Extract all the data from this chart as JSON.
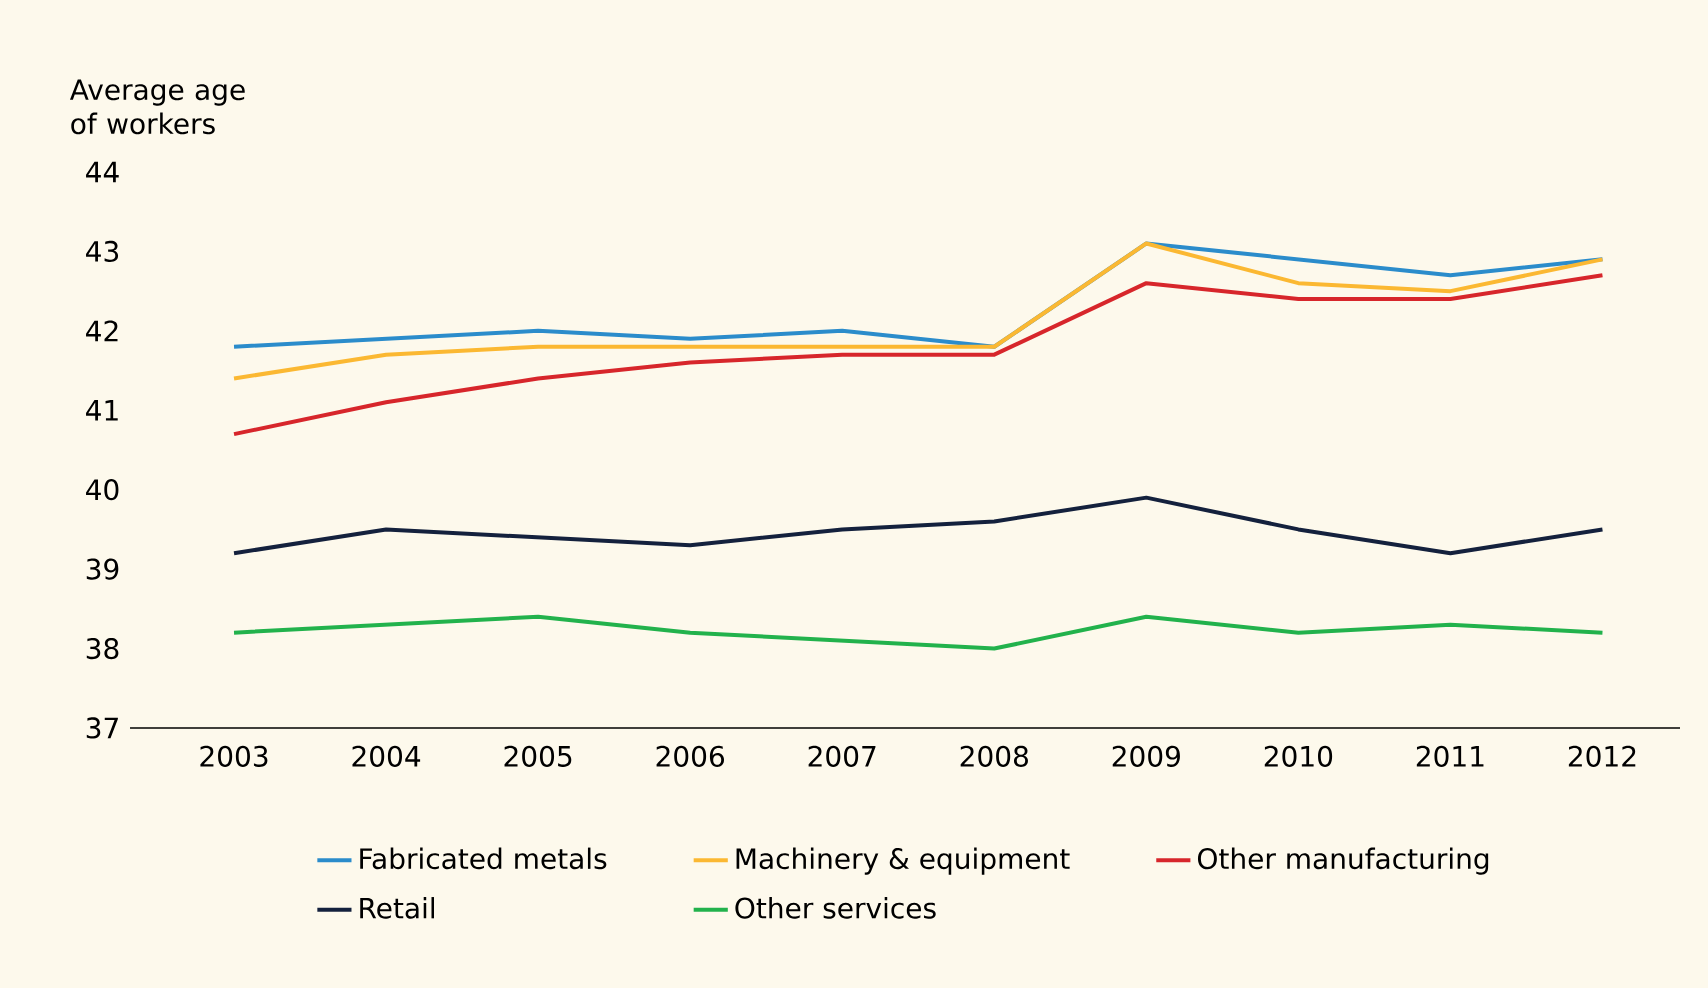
{
  "chart_data": {
    "type": "line",
    "ylabel": "Average age of workers",
    "categories": [
      "2003",
      "2004",
      "2005",
      "2006",
      "2007",
      "2008",
      "2009",
      "2010",
      "2011",
      "2012"
    ],
    "ylim": [
      37,
      44
    ],
    "yticks": [
      37,
      38,
      39,
      40,
      41,
      42,
      43,
      44
    ],
    "grid": false,
    "legend": "bottom",
    "marker": "none",
    "line_style": "solid",
    "series": [
      {
        "name": "Fabricated metals",
        "color": "#2b8ccb",
        "values": [
          41.8,
          41.9,
          42.0,
          41.9,
          42.0,
          41.8,
          43.1,
          42.9,
          42.7,
          42.9
        ]
      },
      {
        "name": "Machinery & equipment",
        "color": "#fbb832",
        "values": [
          41.4,
          41.7,
          41.8,
          41.8,
          41.8,
          41.8,
          43.1,
          42.6,
          42.5,
          42.9
        ]
      },
      {
        "name": "Other manufacturing",
        "color": "#d7262b",
        "values": [
          40.7,
          41.1,
          41.4,
          41.6,
          41.7,
          41.7,
          42.6,
          42.4,
          42.4,
          42.7
        ]
      },
      {
        "name": "Retail",
        "color": "#14213d",
        "values": [
          39.2,
          39.5,
          39.4,
          39.3,
          39.5,
          39.6,
          39.9,
          39.5,
          39.2,
          39.5
        ]
      },
      {
        "name": "Other services",
        "color": "#22b24c",
        "values": [
          38.2,
          38.3,
          38.4,
          38.2,
          38.1,
          38.0,
          38.4,
          38.2,
          38.3,
          38.2
        ]
      }
    ]
  }
}
